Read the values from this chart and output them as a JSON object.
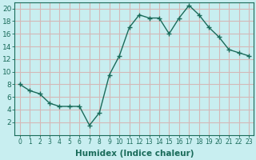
{
  "x": [
    0,
    1,
    2,
    3,
    4,
    5,
    6,
    7,
    8,
    9,
    10,
    11,
    12,
    13,
    14,
    15,
    16,
    17,
    18,
    19,
    20,
    21,
    22,
    23
  ],
  "y": [
    8,
    7,
    6.5,
    5,
    4.5,
    4.5,
    4.5,
    1.5,
    3.5,
    9.5,
    12.5,
    17,
    19,
    18.5,
    18.5,
    16,
    18.5,
    20.5,
    19,
    17,
    15.5,
    13.5,
    13,
    12.5
  ],
  "line_color": "#1a6b5a",
  "marker": "+",
  "marker_color": "#1a6b5a",
  "background_color": "#c8eef0",
  "grid_color": "#d4b8b8",
  "xlabel": "Humidex (Indice chaleur)",
  "ylabel": "",
  "title": "",
  "ylim": [
    0,
    21
  ],
  "xlim": [
    -0.5,
    23.5
  ],
  "yticks": [
    2,
    4,
    6,
    8,
    10,
    12,
    14,
    16,
    18,
    20
  ],
  "xticks": [
    0,
    1,
    2,
    3,
    4,
    5,
    6,
    7,
    8,
    9,
    10,
    11,
    12,
    13,
    14,
    15,
    16,
    17,
    18,
    19,
    20,
    21,
    22,
    23
  ],
  "xtick_labels": [
    "0",
    "1",
    "2",
    "3",
    "4",
    "5",
    "6",
    "7",
    "8",
    "9",
    "10",
    "11",
    "12",
    "13",
    "14",
    "15",
    "16",
    "17",
    "18",
    "19",
    "20",
    "21",
    "22",
    "23"
  ],
  "font_color": "#1a6b5a",
  "linewidth": 1.0,
  "markersize": 5,
  "xlabel_fontsize": 7.5,
  "tick_fontsize_x": 5.5,
  "tick_fontsize_y": 6.5
}
